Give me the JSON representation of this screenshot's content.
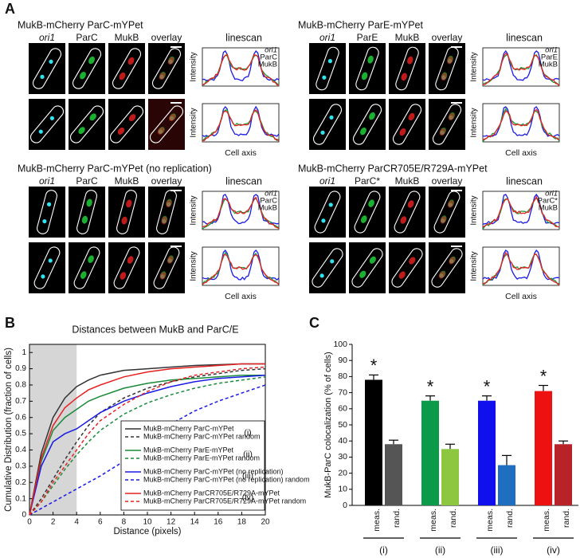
{
  "figure": {
    "panel_labels": [
      "A",
      "B",
      "C"
    ]
  },
  "panel_a": {
    "groups": [
      {
        "title": "MukB-mCherry ParC-mYPet",
        "channels": [
          "ori1",
          "ParC",
          "MukB",
          "overlay"
        ],
        "linescan_title": "linescan",
        "legend": [
          "ori1",
          "ParC",
          "MukB"
        ],
        "ylabel": "Intensity",
        "xlabel": "Cell axis"
      },
      {
        "title": "MukB-mCherry ParE-mYPet",
        "channels": [
          "ori1",
          "ParE",
          "MukB",
          "overlay"
        ],
        "linescan_title": "linescan",
        "legend": [
          "ori1",
          "ParE",
          "MukB"
        ],
        "ylabel": "Intensity",
        "xlabel": "Cell axis"
      },
      {
        "title": "MukB-mCherry ParC-mYPet (no replication)",
        "channels": [
          "ori1",
          "ParC",
          "MukB",
          "overlay"
        ],
        "linescan_title": "linescan",
        "legend": [
          "ori1",
          "ParC",
          "MukB"
        ],
        "ylabel": "Intensity",
        "xlabel": "Cell axis"
      },
      {
        "title": "MukB-mCherry ParCR705E/R729A-mYPet",
        "channels": [
          "ori1",
          "ParC*",
          "MukB",
          "overlay"
        ],
        "linescan_title": "linescan",
        "legend": [
          "ori1",
          "ParC*",
          "MukB"
        ],
        "ylabel": "Intensity",
        "xlabel": "Cell axis"
      }
    ]
  },
  "chart_data": [
    {
      "type": "line",
      "title": "Distances between MukB and ParC/E",
      "x_label": "Distance (pixels)",
      "y_label": "Cumulative Distribution (fraction of cells)",
      "x": [
        0,
        1,
        2,
        3,
        4,
        5,
        6,
        8,
        10,
        12,
        14,
        16,
        18,
        20
      ],
      "series": [
        {
          "name": "MukB-mCherry ParC-mYPet",
          "color": "#333333",
          "dashed": false,
          "values": [
            0,
            0.38,
            0.6,
            0.72,
            0.79,
            0.83,
            0.86,
            0.89,
            0.9,
            0.91,
            0.92,
            0.925,
            0.93,
            0.93
          ]
        },
        {
          "name": "MukB-mCherry ParC-mYPet random",
          "color": "#333333",
          "dashed": true,
          "values": [
            0,
            0.1,
            0.22,
            0.34,
            0.45,
            0.55,
            0.63,
            0.72,
            0.78,
            0.82,
            0.85,
            0.87,
            0.89,
            0.9
          ]
        },
        {
          "name": "MukB-mCherry ParE-mYPet",
          "color": "#1a8a3a",
          "dashed": false,
          "values": [
            0,
            0.33,
            0.52,
            0.6,
            0.65,
            0.7,
            0.73,
            0.78,
            0.81,
            0.83,
            0.84,
            0.85,
            0.86,
            0.86
          ]
        },
        {
          "name": "MukB-mCherry ParE-mYPet random",
          "color": "#1a8a3a",
          "dashed": true,
          "values": [
            0,
            0.08,
            0.18,
            0.28,
            0.37,
            0.45,
            0.52,
            0.62,
            0.69,
            0.74,
            0.78,
            0.81,
            0.83,
            0.85
          ]
        },
        {
          "name": "MukB-mCherry ParC-mYPet (no replication)",
          "color": "#1a1ae6",
          "dashed": false,
          "values": [
            0,
            0.3,
            0.45,
            0.5,
            0.53,
            0.58,
            0.63,
            0.7,
            0.75,
            0.79,
            0.82,
            0.84,
            0.85,
            0.86
          ]
        },
        {
          "name": "MukB-mCherry ParC-mYPet (no replication) random",
          "color": "#1a1ae6",
          "dashed": true,
          "values": [
            0,
            0.04,
            0.08,
            0.12,
            0.16,
            0.2,
            0.24,
            0.33,
            0.45,
            0.56,
            0.64,
            0.7,
            0.75,
            0.8
          ]
        },
        {
          "name": "MukB-mCherry ParCR705E/R729A-mYPet",
          "color": "#e62020",
          "dashed": false,
          "values": [
            0,
            0.35,
            0.55,
            0.66,
            0.72,
            0.77,
            0.8,
            0.85,
            0.88,
            0.9,
            0.91,
            0.92,
            0.93,
            0.93
          ]
        },
        {
          "name": "MukB-mCherry ParCR705E/R729A-mYPet random",
          "color": "#e62020",
          "dashed": true,
          "values": [
            0,
            0.08,
            0.2,
            0.3,
            0.4,
            0.5,
            0.58,
            0.68,
            0.76,
            0.82,
            0.86,
            0.88,
            0.9,
            0.91
          ]
        }
      ],
      "legend_groups": [
        "(i)",
        "(ii)",
        "(iii)",
        "(iv)"
      ],
      "xlim": [
        0,
        20
      ],
      "ylim": [
        0,
        1.05
      ],
      "xticks": [
        0,
        2,
        4,
        6,
        8,
        10,
        12,
        14,
        16,
        18,
        20
      ],
      "yticks": [
        0,
        0.1,
        0.2,
        0.3,
        0.4,
        0.5,
        0.6,
        0.7,
        0.8,
        0.9,
        1
      ],
      "shaded_xrange": [
        0,
        4
      ]
    },
    {
      "type": "bar",
      "y_label": "MukB-ParC colocalization (% of cells)",
      "categories": [
        "meas.",
        "rand.",
        "meas.",
        "rand.",
        "meas.",
        "rand.",
        "meas.",
        "rand."
      ],
      "values": [
        78,
        38,
        65,
        35,
        65,
        25,
        71,
        38
      ],
      "errors": [
        3,
        2.5,
        3,
        3,
        3,
        6,
        3.5,
        2
      ],
      "colors": [
        "#000000",
        "#555555",
        "#0a9a4a",
        "#8dc63f",
        "#1010ee",
        "#1f6fc0",
        "#ee1111",
        "#b8232a"
      ],
      "annotations": [
        "*",
        null,
        "*",
        null,
        "*",
        null,
        "*",
        null
      ],
      "groups": [
        "(i)",
        "(ii)",
        "(iii)",
        "(iv)"
      ],
      "ylim": [
        0,
        100
      ],
      "yticks": [
        0,
        10,
        20,
        30,
        40,
        50,
        60,
        70,
        80,
        90,
        100
      ]
    }
  ]
}
